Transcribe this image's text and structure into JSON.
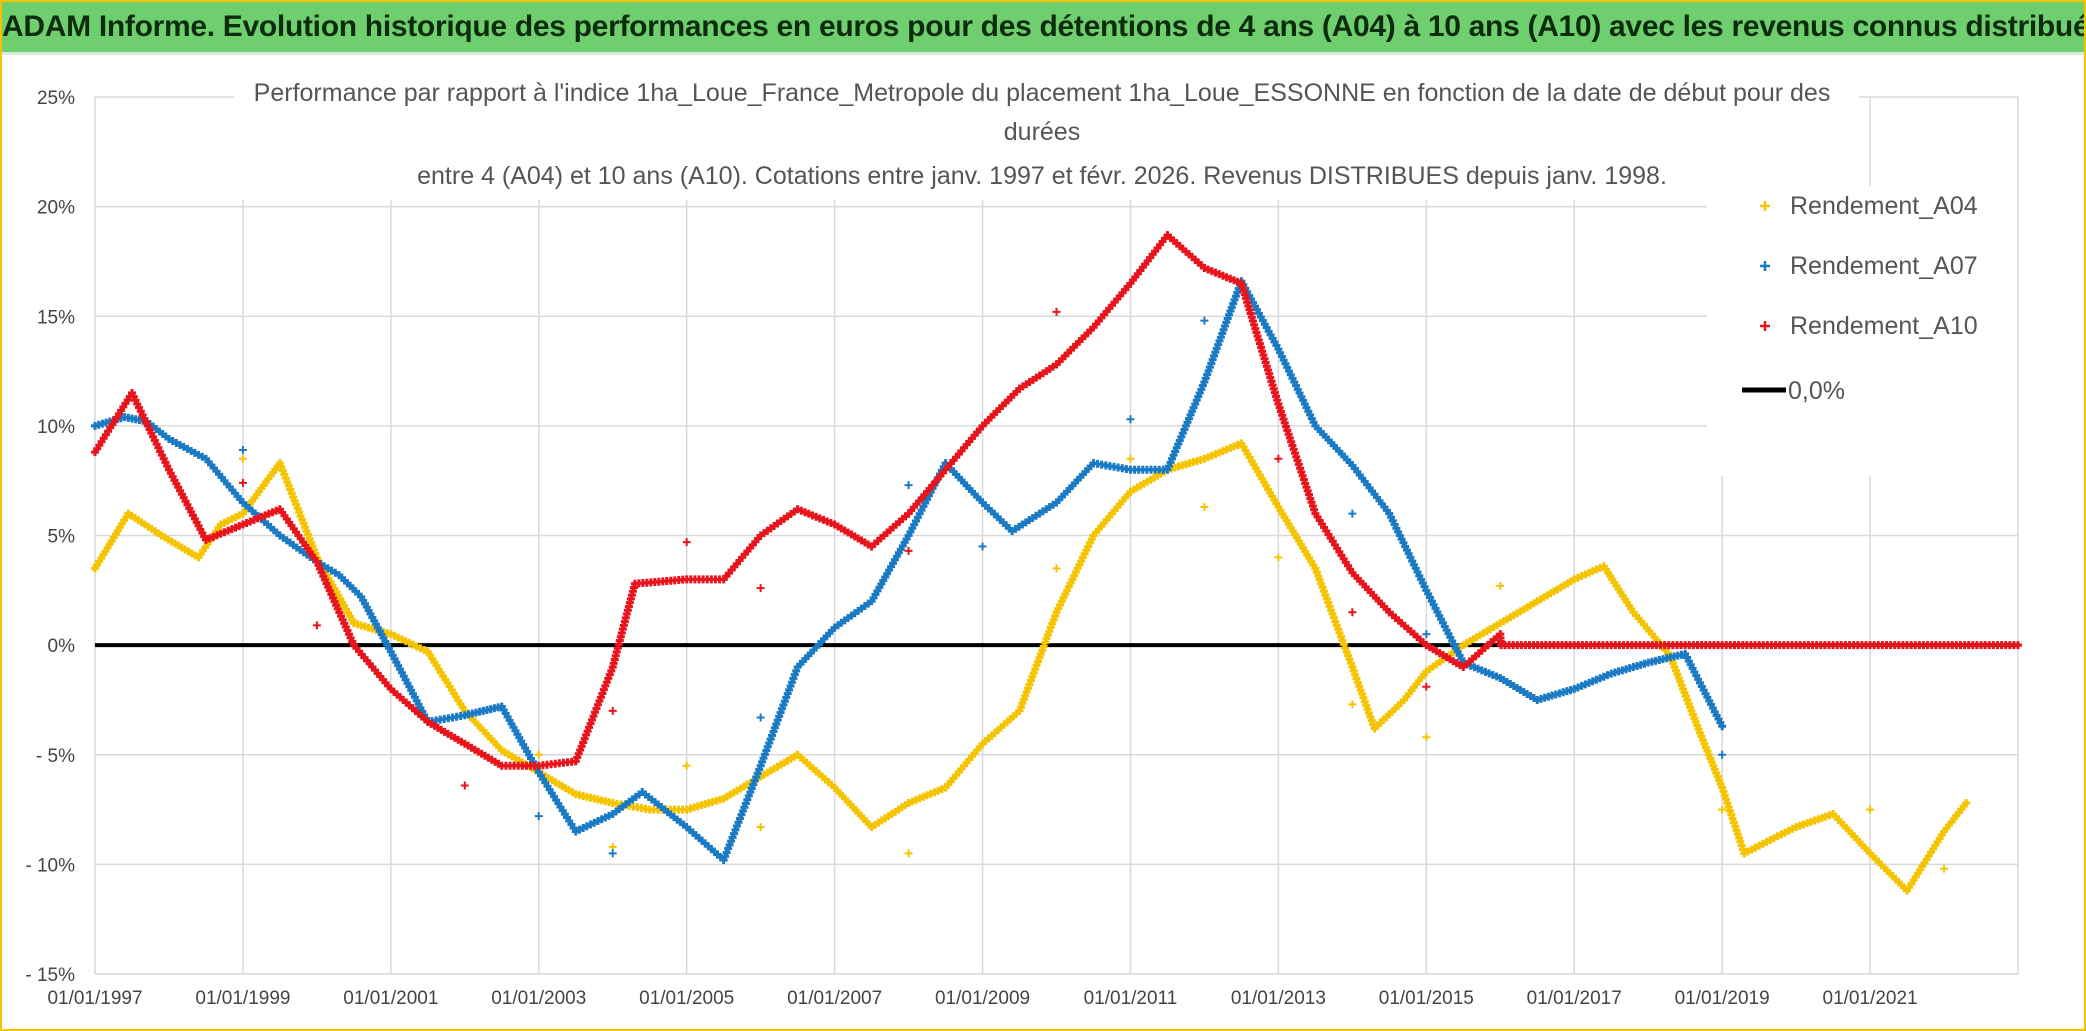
{
  "banner": {
    "title": "ADAM Informe. Evolution historique des performances en euros pour des détentions de 4 ans (A04) à 10 ans (A10) avec les revenus connus distribués"
  },
  "colors": {
    "banner_bg": "#6fcf6f",
    "a04": "#f5c400",
    "a07": "#1a7ac4",
    "a10": "#e8141c",
    "zero": "#000000",
    "grid": "#d9d9d9"
  },
  "chart_data": {
    "type": "scatter",
    "title_lines": [
      "Performance par rapport à l'indice 1ha_Loue_France_Metropole  du placement 1ha_Loue_ESSONNE en fonction de la date de début pour des",
      "durées",
      "entre 4 (A04) et 10 ans (A10). Cotations entre janv. 1997 et févr. 2026. Revenus DISTRIBUES depuis janv. 1998."
    ],
    "xlabel": "",
    "ylabel": "",
    "xlim": [
      1997.0,
      2023.0
    ],
    "ylim": [
      -15,
      25
    ],
    "x_tick_values": [
      1997,
      1999,
      2001,
      2003,
      2005,
      2007,
      2009,
      2011,
      2013,
      2015,
      2017,
      2019,
      2021
    ],
    "x_tick_labels": [
      "01/01/1997",
      "01/01/1999",
      "01/01/2001",
      "01/01/2003",
      "01/01/2005",
      "01/01/2007",
      "01/01/2009",
      "01/01/2011",
      "01/01/2013",
      "01/01/2015",
      "01/01/2017",
      "01/01/2019",
      "01/01/2021"
    ],
    "y_tick_values": [
      25,
      20,
      15,
      10,
      5,
      0,
      -5,
      -10,
      -15
    ],
    "y_tick_labels": [
      "25%",
      "20%",
      "15%",
      "10%",
      "5%",
      "0%",
      "- 5%",
      "- 10%",
      "- 15%"
    ],
    "grid": true,
    "legend_position": "top-right",
    "legend": [
      "Rendement_A04",
      "Rendement_A07",
      "Rendement_A10",
      "0,0%"
    ],
    "series": [
      {
        "name": "Rendement_A04",
        "color_key": "a04",
        "points": [
          [
            1997.0,
            3.5
          ],
          [
            1997.45,
            6.0
          ],
          [
            1997.9,
            5.0
          ],
          [
            1998.4,
            4.0
          ],
          [
            1998.7,
            5.5
          ],
          [
            1999.0,
            6.0
          ],
          [
            1999.5,
            8.3
          ],
          [
            2000.0,
            4.0
          ],
          [
            2000.5,
            1.0
          ],
          [
            2001.0,
            0.5
          ],
          [
            2001.5,
            -0.3
          ],
          [
            2002.0,
            -3.0
          ],
          [
            2002.5,
            -4.8
          ],
          [
            2003.0,
            -5.8
          ],
          [
            2003.5,
            -6.8
          ],
          [
            2004.0,
            -7.2
          ],
          [
            2004.5,
            -7.5
          ],
          [
            2005.0,
            -7.5
          ],
          [
            2005.5,
            -7.0
          ],
          [
            2006.0,
            -6.0
          ],
          [
            2006.5,
            -5.0
          ],
          [
            2007.0,
            -6.5
          ],
          [
            2007.5,
            -8.3
          ],
          [
            2008.0,
            -7.2
          ],
          [
            2008.5,
            -6.5
          ],
          [
            2009.0,
            -4.5
          ],
          [
            2009.5,
            -3.0
          ],
          [
            2010.0,
            1.5
          ],
          [
            2010.5,
            5.0
          ],
          [
            2011.0,
            7.0
          ],
          [
            2011.5,
            8.0
          ],
          [
            2012.0,
            8.5
          ],
          [
            2012.5,
            9.2
          ],
          [
            2013.0,
            6.3
          ],
          [
            2013.5,
            3.5
          ],
          [
            2014.0,
            -1.0
          ],
          [
            2014.3,
            -3.8
          ],
          [
            2014.7,
            -2.5
          ],
          [
            2015.0,
            -1.2
          ],
          [
            2015.5,
            0.0
          ],
          [
            2016.0,
            1.0
          ],
          [
            2016.5,
            2.0
          ],
          [
            2017.0,
            3.0
          ],
          [
            2017.4,
            3.6
          ],
          [
            2017.8,
            1.5
          ],
          [
            2018.3,
            -0.5
          ],
          [
            2018.7,
            -4.0
          ],
          [
            2019.0,
            -6.5
          ],
          [
            2019.3,
            -9.5
          ],
          [
            2019.7,
            -8.8
          ],
          [
            2020.0,
            -8.3
          ],
          [
            2020.5,
            -7.7
          ],
          [
            2021.0,
            -9.5
          ],
          [
            2021.5,
            -11.2
          ],
          [
            2022.0,
            -8.5
          ],
          [
            2022.3,
            -7.2
          ]
        ],
        "outliers": [
          [
            1999.0,
            8.5
          ],
          [
            2003.0,
            -5.0
          ],
          [
            2004.0,
            -9.2
          ],
          [
            2005.0,
            -5.5
          ],
          [
            2006.0,
            -8.3
          ],
          [
            2008.0,
            -9.5
          ],
          [
            2010.0,
            3.5
          ],
          [
            2011.0,
            8.5
          ],
          [
            2012.0,
            6.3
          ],
          [
            2013.0,
            4.0
          ],
          [
            2014.0,
            -2.7
          ],
          [
            2015.0,
            -4.2
          ],
          [
            2016.0,
            2.7
          ],
          [
            2019.0,
            -7.5
          ],
          [
            2021.0,
            -7.5
          ],
          [
            2022.0,
            -10.2
          ]
        ]
      },
      {
        "name": "Rendement_A07",
        "color_key": "a07",
        "points": [
          [
            1997.0,
            10.0
          ],
          [
            1997.4,
            10.4
          ],
          [
            1997.7,
            10.2
          ],
          [
            1998.0,
            9.4
          ],
          [
            1998.5,
            8.5
          ],
          [
            1999.0,
            6.5
          ],
          [
            1999.5,
            5.0
          ],
          [
            2000.0,
            3.8
          ],
          [
            2000.3,
            3.2
          ],
          [
            2000.6,
            2.2
          ],
          [
            2001.0,
            -0.3
          ],
          [
            2001.5,
            -3.5
          ],
          [
            2002.0,
            -3.2
          ],
          [
            2002.5,
            -2.8
          ],
          [
            2003.0,
            -5.8
          ],
          [
            2003.5,
            -8.5
          ],
          [
            2004.0,
            -7.7
          ],
          [
            2004.4,
            -6.7
          ],
          [
            2005.0,
            -8.3
          ],
          [
            2005.5,
            -9.8
          ],
          [
            2006.0,
            -5.5
          ],
          [
            2006.5,
            -1.0
          ],
          [
            2007.0,
            0.8
          ],
          [
            2007.5,
            2.0
          ],
          [
            2008.0,
            5.0
          ],
          [
            2008.5,
            8.3
          ],
          [
            2009.0,
            6.5
          ],
          [
            2009.4,
            5.2
          ],
          [
            2010.0,
            6.5
          ],
          [
            2010.5,
            8.3
          ],
          [
            2011.0,
            8.0
          ],
          [
            2011.5,
            8.0
          ],
          [
            2012.0,
            12.0
          ],
          [
            2012.5,
            16.6
          ],
          [
            2013.0,
            13.5
          ],
          [
            2013.5,
            10.0
          ],
          [
            2014.0,
            8.2
          ],
          [
            2014.5,
            6.0
          ],
          [
            2015.0,
            2.5
          ],
          [
            2015.5,
            -0.8
          ],
          [
            2016.0,
            -1.5
          ],
          [
            2016.5,
            -2.5
          ],
          [
            2017.0,
            -2.0
          ],
          [
            2017.5,
            -1.3
          ],
          [
            2018.0,
            -0.8
          ],
          [
            2018.5,
            -0.4
          ],
          [
            2019.0,
            -3.7
          ]
        ],
        "outliers": [
          [
            1999.0,
            8.9
          ],
          [
            2003.0,
            -7.8
          ],
          [
            2004.0,
            -9.5
          ],
          [
            2006.0,
            -3.3
          ],
          [
            2008.0,
            7.3
          ],
          [
            2009.0,
            4.5
          ],
          [
            2011.0,
            10.3
          ],
          [
            2012.0,
            14.8
          ],
          [
            2014.0,
            6.0
          ],
          [
            2015.0,
            0.5
          ],
          [
            2019.0,
            -5.0
          ]
        ]
      },
      {
        "name": "Rendement_A10",
        "color_key": "a10",
        "points": [
          [
            1997.0,
            8.8
          ],
          [
            1997.5,
            11.5
          ],
          [
            1998.0,
            8.0
          ],
          [
            1998.5,
            4.8
          ],
          [
            1999.0,
            5.5
          ],
          [
            1999.5,
            6.2
          ],
          [
            2000.0,
            3.8
          ],
          [
            2000.5,
            0.0
          ],
          [
            2001.0,
            -2.0
          ],
          [
            2001.5,
            -3.5
          ],
          [
            2002.0,
            -4.5
          ],
          [
            2002.5,
            -5.5
          ],
          [
            2003.0,
            -5.5
          ],
          [
            2003.5,
            -5.3
          ],
          [
            2004.0,
            -1.0
          ],
          [
            2004.3,
            2.8
          ],
          [
            2005.0,
            3.0
          ],
          [
            2005.5,
            3.0
          ],
          [
            2006.0,
            5.0
          ],
          [
            2006.5,
            6.2
          ],
          [
            2007.0,
            5.5
          ],
          [
            2007.5,
            4.5
          ],
          [
            2008.0,
            6.0
          ],
          [
            2008.5,
            8.0
          ],
          [
            2009.0,
            10.0
          ],
          [
            2009.5,
            11.7
          ],
          [
            2010.0,
            12.8
          ],
          [
            2010.5,
            14.5
          ],
          [
            2011.0,
            16.5
          ],
          [
            2011.5,
            18.7
          ],
          [
            2012.0,
            17.2
          ],
          [
            2012.5,
            16.5
          ],
          [
            2013.0,
            11.0
          ],
          [
            2013.5,
            6.0
          ],
          [
            2014.0,
            3.3
          ],
          [
            2014.5,
            1.5
          ],
          [
            2015.0,
            0.0
          ],
          [
            2015.5,
            -1.0
          ],
          [
            2016.0,
            0.5
          ],
          [
            2016.01,
            0.0
          ],
          [
            2017.0,
            0.0
          ],
          [
            2018.0,
            0.0
          ],
          [
            2019.0,
            0.0
          ],
          [
            2020.0,
            0.0
          ],
          [
            2021.0,
            0.0
          ],
          [
            2022.0,
            0.0
          ],
          [
            2023.0,
            0.0
          ]
        ],
        "outliers": [
          [
            1999.0,
            7.4
          ],
          [
            2000.0,
            0.9
          ],
          [
            2002.0,
            -6.4
          ],
          [
            2004.0,
            -3.0
          ],
          [
            2005.0,
            4.7
          ],
          [
            2006.0,
            2.6
          ],
          [
            2008.0,
            4.3
          ],
          [
            2010.0,
            15.2
          ],
          [
            2013.0,
            8.5
          ],
          [
            2014.0,
            1.5
          ],
          [
            2015.0,
            -1.9
          ]
        ]
      }
    ],
    "reference_line": {
      "name": "0,0%",
      "y": 0
    }
  }
}
